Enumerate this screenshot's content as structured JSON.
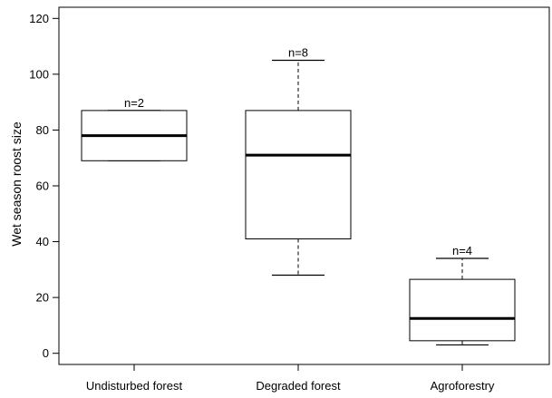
{
  "chart_data": {
    "type": "boxplot",
    "ylabel": "Wet season roost size",
    "xlabel": "",
    "ylim": [
      -4,
      124
    ],
    "yticks": [
      0,
      20,
      40,
      60,
      80,
      100,
      120
    ],
    "grid": false,
    "categories": [
      "Undisturbed forest",
      "Degraded forest",
      "Agroforestry"
    ],
    "boxes": [
      {
        "category": "Undisturbed forest",
        "n_label": "n=2",
        "whisker_low": 69,
        "q1": 69,
        "median": 78,
        "q3": 87,
        "whisker_high": 87
      },
      {
        "category": "Degraded forest",
        "n_label": "n=8",
        "whisker_low": 28,
        "q1": 41,
        "median": 71,
        "q3": 87,
        "whisker_high": 105
      },
      {
        "category": "Agroforestry",
        "n_label": "n=4",
        "whisker_low": 3,
        "q1": 4.5,
        "median": 12.5,
        "q3": 26.5,
        "whisker_high": 34
      }
    ]
  }
}
